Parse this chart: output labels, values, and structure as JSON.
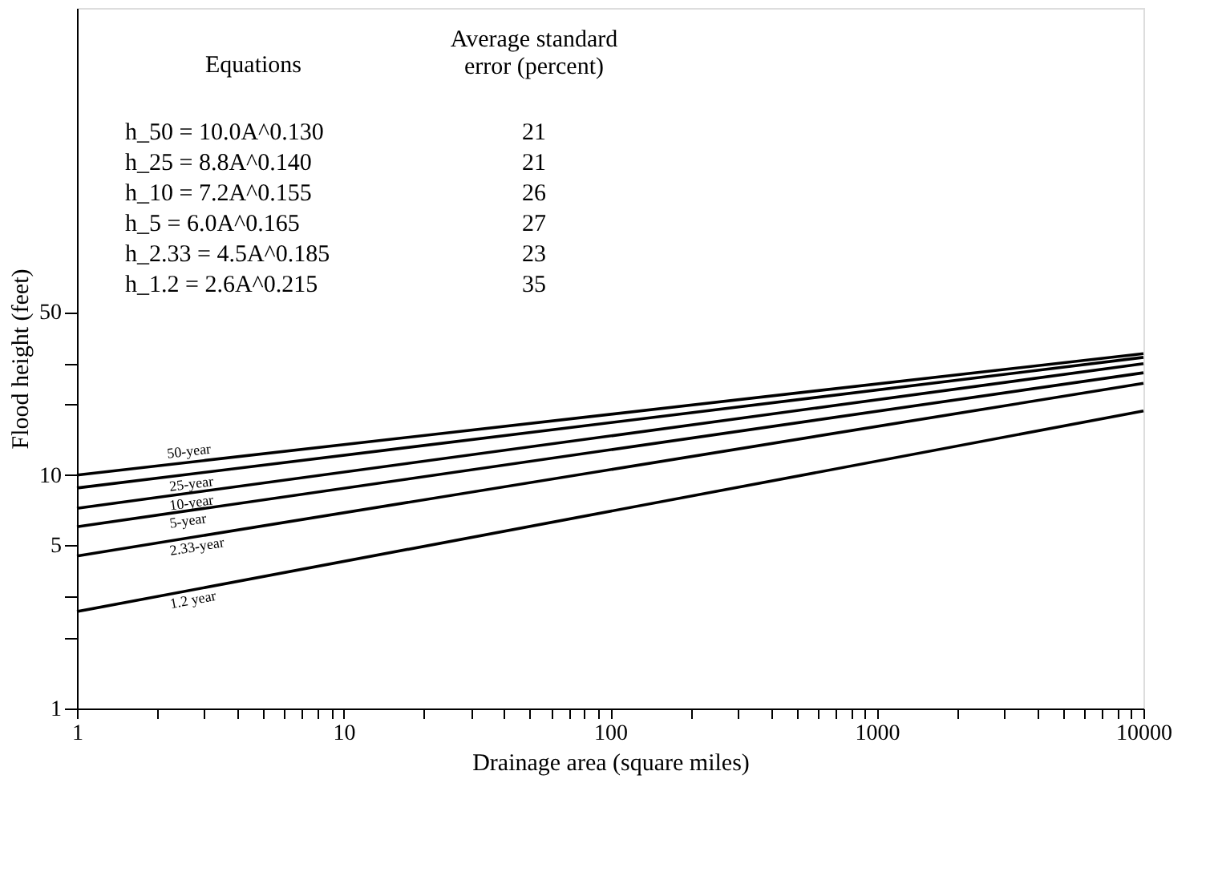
{
  "chart_data": {
    "type": "line",
    "xlabel": "Drainage area (square miles)",
    "ylabel": "Flood height (feet)",
    "x": [
      1,
      10000
    ],
    "series": [
      {
        "name": "50-year",
        "color": "#000000",
        "values": [
          10.0,
          33.1
        ]
      },
      {
        "name": "25-year",
        "color": "#000000",
        "values": [
          8.8,
          31.9
        ]
      },
      {
        "name": "10-year",
        "color": "#000000",
        "values": [
          7.2,
          30.0
        ]
      },
      {
        "name": "5-year",
        "color": "#000000",
        "values": [
          6.0,
          27.4
        ]
      },
      {
        "name": "2.33-year",
        "color": "#000000",
        "values": [
          4.5,
          24.7
        ]
      },
      {
        "name": "1.2 year",
        "color": "#000000",
        "values": [
          2.6,
          18.8
        ]
      }
    ],
    "log": "xy",
    "xlim": [
      1,
      10000
    ],
    "ylim": [
      1,
      1000
    ],
    "xticks": [
      1,
      {
        "value": 2,
        "label": null
      },
      {
        "value": 3,
        "label": null
      },
      {
        "value": 4,
        "label": null
      },
      {
        "value": 5,
        "label": null
      },
      {
        "value": 6,
        "label": null
      },
      {
        "value": 7,
        "label": null
      },
      {
        "value": 8,
        "label": null
      },
      {
        "value": 9,
        "label": null
      },
      10,
      {
        "value": 20,
        "label": null
      },
      {
        "value": 30,
        "label": null
      },
      {
        "value": 40,
        "label": null
      },
      {
        "value": 50,
        "label": null
      },
      {
        "value": 60,
        "label": null
      },
      {
        "value": 70,
        "label": null
      },
      {
        "value": 80,
        "label": null
      },
      {
        "value": 90,
        "label": null
      },
      100,
      {
        "value": 200,
        "label": null
      },
      {
        "value": 300,
        "label": null
      },
      {
        "value": 400,
        "label": null
      },
      {
        "value": 500,
        "label": null
      },
      {
        "value": 600,
        "label": null
      },
      {
        "value": 700,
        "label": null
      },
      {
        "value": 800,
        "label": null
      },
      {
        "value": 900,
        "label": null
      },
      1000,
      {
        "value": 2000,
        "label": null
      },
      {
        "value": 3000,
        "label": null
      },
      {
        "value": 4000,
        "label": null
      },
      {
        "value": 5000,
        "label": null
      },
      {
        "value": 6000,
        "label": null
      },
      {
        "value": 7000,
        "label": null
      },
      {
        "value": 8000,
        "label": null
      },
      {
        "value": 9000,
        "label": null
      },
      10000
    ],
    "yticks": [
      1,
      {
        "value": 2,
        "label": null
      },
      {
        "value": 3,
        "label": null
      },
      5,
      10,
      {
        "value": 20,
        "label": null
      },
      {
        "value": 30,
        "label": null
      },
      50
    ],
    "grid": false,
    "legend": false,
    "marker": "none",
    "line_style": "solid",
    "annotations": [
      "Equations",
      "Average standard\nerror (percent)",
      "h_50 = 10.0A^0.130",
      "21",
      "h_25 = 8.8A^0.140",
      "21",
      "h_10 = 7.2A^0.155",
      "26",
      "h_5 = 6.0A^0.165",
      "27",
      "h_2.33 = 4.5A^0.185",
      "23",
      "h_1.2 = 2.6A^0.215",
      "35"
    ]
  }
}
